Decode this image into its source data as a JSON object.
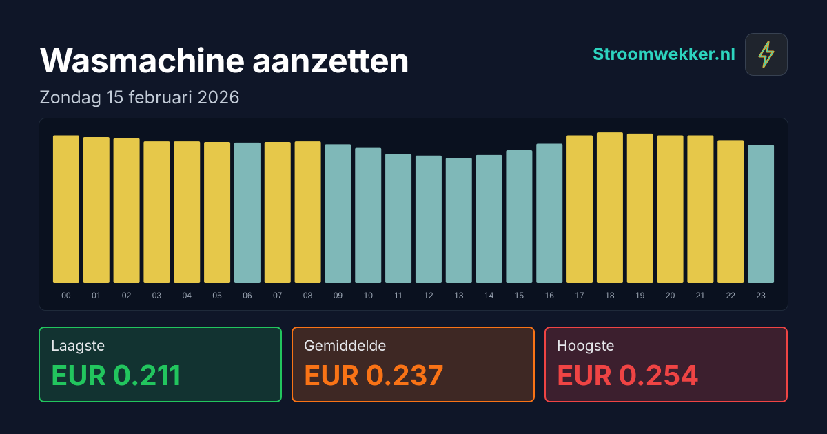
{
  "header": {
    "title": "Wasmachine aanzetten",
    "subtitle": "Zondag 15 februari 2026"
  },
  "brand": {
    "name": "Stroomwekker.nl"
  },
  "chart_data": {
    "type": "bar",
    "categories": [
      "00",
      "01",
      "02",
      "03",
      "04",
      "05",
      "06",
      "07",
      "08",
      "09",
      "10",
      "11",
      "12",
      "13",
      "14",
      "15",
      "16",
      "17",
      "18",
      "19",
      "20",
      "21",
      "22",
      "23"
    ],
    "values": [
      0.249,
      0.246,
      0.244,
      0.239,
      0.239,
      0.238,
      0.237,
      0.238,
      0.239,
      0.234,
      0.228,
      0.218,
      0.215,
      0.211,
      0.216,
      0.224,
      0.235,
      0.249,
      0.254,
      0.252,
      0.249,
      0.249,
      0.241,
      0.233
    ],
    "colors": [
      "#e6c84a",
      "#e6c84a",
      "#e6c84a",
      "#e6c84a",
      "#e6c84a",
      "#e6c84a",
      "#7fb8b8",
      "#e6c84a",
      "#e6c84a",
      "#7fb8b8",
      "#7fb8b8",
      "#7fb8b8",
      "#7fb8b8",
      "#7fb8b8",
      "#7fb8b8",
      "#7fb8b8",
      "#7fb8b8",
      "#e6c84a",
      "#e6c84a",
      "#e6c84a",
      "#e6c84a",
      "#e6c84a",
      "#e6c84a",
      "#7fb8b8"
    ],
    "ylim": [
      0,
      0.26
    ]
  },
  "stats": [
    {
      "label": "Laagste",
      "value": "EUR 0.211",
      "color": "#22c55e"
    },
    {
      "label": "Gemiddelde",
      "value": "EUR 0.237",
      "color": "#f97316"
    },
    {
      "label": "Hoogste",
      "value": "EUR 0.254",
      "color": "#ef4444"
    }
  ]
}
